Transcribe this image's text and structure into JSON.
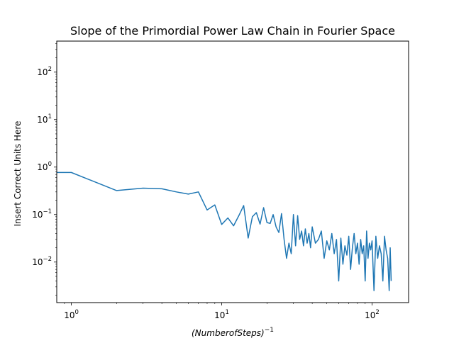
{
  "chart_data": {
    "type": "line",
    "title": "Slope of the Primordial Power Law Chain in Fourier Space",
    "xlabel": "(NumberofSteps)",
    "xlabel_exponent": "−1",
    "ylabel": "Insert Correct Units Here",
    "xscale": "log",
    "yscale": "log",
    "xlim": [
      0.8,
      175
    ],
    "ylim": [
      0.0014,
      450
    ],
    "x_ticks": [
      {
        "value": 1,
        "label": "10",
        "exp": "0"
      },
      {
        "value": 10,
        "label": "10",
        "exp": "1"
      },
      {
        "value": 100,
        "label": "10",
        "exp": "2"
      }
    ],
    "y_ticks": [
      {
        "value": 0.01,
        "label": "10",
        "exp": "−2"
      },
      {
        "value": 0.1,
        "label": "10",
        "exp": "−1"
      },
      {
        "value": 1,
        "label": "10",
        "exp": "0"
      },
      {
        "value": 10,
        "label": "10",
        "exp": "1"
      },
      {
        "value": 100,
        "label": "10",
        "exp": "2"
      }
    ],
    "grid": false,
    "color": "#1f77b4",
    "series": [
      {
        "x": [
          0.8,
          1,
          2,
          3,
          4,
          5,
          6,
          7,
          8,
          9,
          10,
          11,
          12,
          13,
          14,
          15,
          16,
          17,
          18,
          19,
          20,
          21,
          22,
          23,
          24,
          25,
          26,
          27,
          28,
          29,
          30,
          31,
          32,
          33,
          34,
          35,
          36,
          37,
          38,
          39,
          40,
          42,
          44,
          46,
          48,
          50,
          52,
          54,
          56,
          58,
          60,
          62,
          64,
          66,
          68,
          70,
          72,
          74,
          76,
          78,
          80,
          82,
          84,
          86,
          88,
          90,
          92,
          94,
          96,
          98,
          100,
          103,
          106,
          109,
          112,
          115,
          118,
          121,
          124,
          127,
          130,
          132,
          134
        ],
        "y": [
          0.77,
          0.77,
          0.32,
          0.36,
          0.35,
          0.3,
          0.27,
          0.3,
          0.125,
          0.16,
          0.062,
          0.085,
          0.058,
          0.095,
          0.155,
          0.032,
          0.09,
          0.11,
          0.063,
          0.14,
          0.068,
          0.065,
          0.1,
          0.055,
          0.042,
          0.105,
          0.03,
          0.012,
          0.025,
          0.015,
          0.1,
          0.022,
          0.095,
          0.03,
          0.045,
          0.022,
          0.05,
          0.025,
          0.04,
          0.02,
          0.055,
          0.025,
          0.03,
          0.045,
          0.012,
          0.028,
          0.018,
          0.04,
          0.015,
          0.03,
          0.004,
          0.032,
          0.009,
          0.022,
          0.014,
          0.035,
          0.007,
          0.02,
          0.04,
          0.015,
          0.025,
          0.009,
          0.03,
          0.015,
          0.022,
          0.004,
          0.045,
          0.012,
          0.025,
          0.018,
          0.028,
          0.0025,
          0.035,
          0.012,
          0.022,
          0.015,
          0.004,
          0.035,
          0.018,
          0.012,
          0.0025,
          0.02,
          0.004
        ]
      }
    ]
  }
}
